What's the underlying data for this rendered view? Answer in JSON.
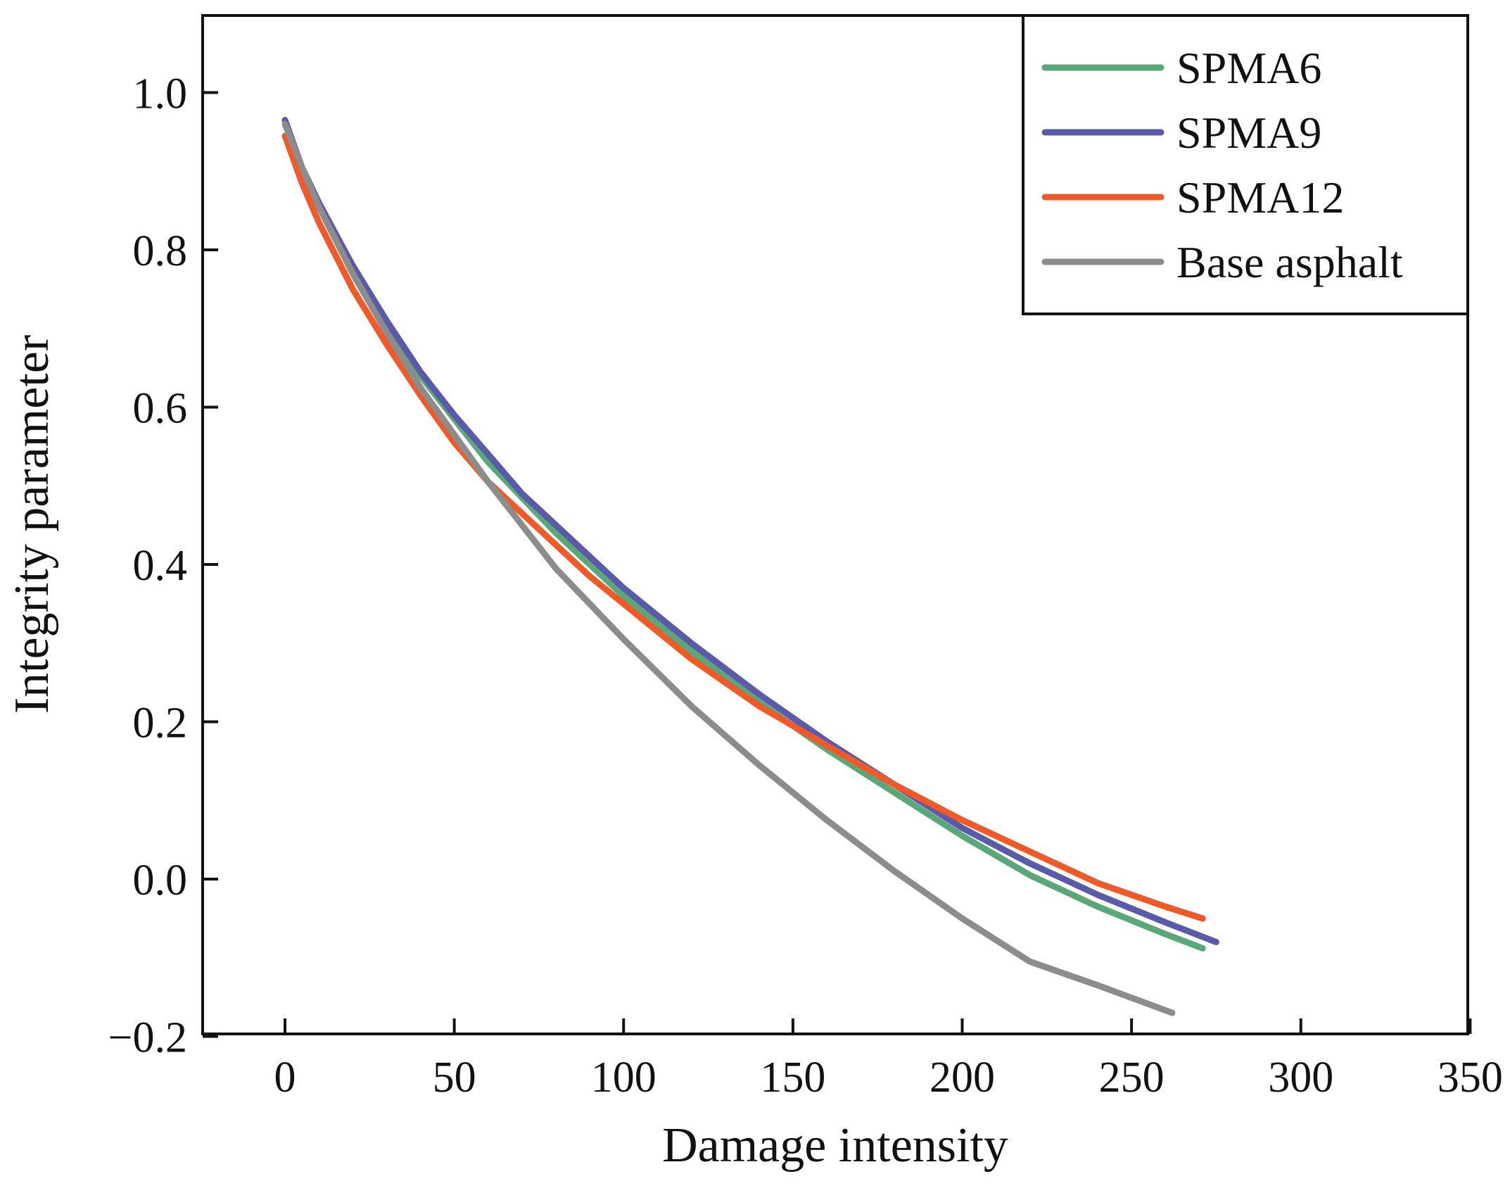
{
  "chart_data": {
    "type": "line",
    "title": "",
    "xlabel": "Damage intensity",
    "ylabel": "Integrity parameter",
    "xlim": [
      -25,
      350
    ],
    "ylim": [
      -0.2,
      1.1
    ],
    "xticks": [
      0,
      50,
      100,
      150,
      200,
      250,
      300,
      350
    ],
    "xtick_labels": [
      "0",
      "50",
      "100",
      "150",
      "200",
      "250",
      "300",
      "350"
    ],
    "yticks": [
      -0.2,
      0.0,
      0.2,
      0.4,
      0.6,
      0.8,
      1.0
    ],
    "ytick_labels": [
      "−0.2",
      "0.0",
      "0.2",
      "0.4",
      "0.6",
      "0.8",
      "1.0"
    ],
    "grid": false,
    "legend_position": "top-right",
    "series": [
      {
        "name": "SPMA6",
        "color": "#5aa77a",
        "x": [
          0,
          5,
          10,
          20,
          30,
          40,
          50,
          60,
          70,
          80,
          90,
          100,
          120,
          140,
          160,
          180,
          200,
          220,
          240,
          260,
          271
        ],
        "y": [
          0.965,
          0.9,
          0.855,
          0.775,
          0.705,
          0.64,
          0.585,
          0.53,
          0.485,
          0.44,
          0.4,
          0.36,
          0.29,
          0.225,
          0.165,
          0.11,
          0.055,
          0.005,
          -0.035,
          -0.07,
          -0.088
        ]
      },
      {
        "name": "SPMA9",
        "color": "#5a5aaa",
        "x": [
          0,
          5,
          10,
          20,
          30,
          40,
          50,
          60,
          70,
          80,
          90,
          100,
          120,
          140,
          160,
          180,
          200,
          220,
          240,
          260,
          275
        ],
        "y": [
          0.965,
          0.905,
          0.86,
          0.78,
          0.71,
          0.645,
          0.59,
          0.54,
          0.49,
          0.45,
          0.41,
          0.37,
          0.3,
          0.235,
          0.175,
          0.12,
          0.065,
          0.02,
          -0.02,
          -0.055,
          -0.08
        ]
      },
      {
        "name": "SPMA12",
        "color": "#f05a28",
        "x": [
          0,
          5,
          10,
          20,
          30,
          40,
          50,
          60,
          70,
          80,
          90,
          100,
          120,
          140,
          160,
          180,
          200,
          220,
          240,
          260,
          271
        ],
        "y": [
          0.945,
          0.885,
          0.835,
          0.75,
          0.68,
          0.615,
          0.555,
          0.505,
          0.465,
          0.425,
          0.385,
          0.35,
          0.28,
          0.22,
          0.17,
          0.12,
          0.075,
          0.035,
          -0.005,
          -0.035,
          -0.05
        ]
      },
      {
        "name": "Base asphalt",
        "color": "#8c8c8c",
        "x": [
          0,
          5,
          10,
          20,
          30,
          40,
          50,
          60,
          70,
          80,
          90,
          100,
          120,
          140,
          160,
          180,
          200,
          220,
          240,
          262
        ],
        "y": [
          0.96,
          0.905,
          0.855,
          0.77,
          0.695,
          0.625,
          0.565,
          0.505,
          0.45,
          0.395,
          0.35,
          0.305,
          0.22,
          0.145,
          0.075,
          0.01,
          -0.05,
          -0.105,
          -0.135,
          -0.17
        ]
      }
    ]
  }
}
